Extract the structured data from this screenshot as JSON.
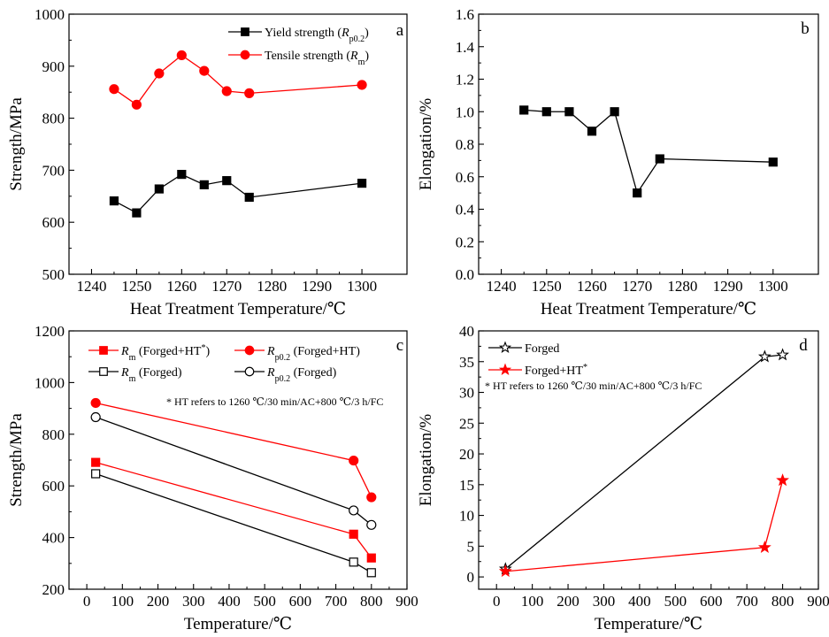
{
  "chart_data": [
    {
      "id": "a",
      "type": "line",
      "panel_label": "a",
      "xlabel": "Heat Treatment Temperature/℃",
      "ylabel": "Strength/MPa",
      "xlim": [
        1235,
        1310
      ],
      "ylim": [
        500,
        1000
      ],
      "xticks": [
        1240,
        1250,
        1260,
        1270,
        1280,
        1290,
        1300
      ],
      "yticks": [
        500,
        600,
        700,
        800,
        900,
        1000
      ],
      "legend_position": "top-right",
      "series": [
        {
          "name": "Yield strength (Rp0.2)",
          "name_main": "Yield strength (",
          "name_var": "R",
          "name_sub": "p0.2",
          "name_end": ")",
          "color": "#000000",
          "marker": "square",
          "filled": true,
          "x": [
            1245,
            1250,
            1255,
            1260,
            1265,
            1270,
            1275,
            1300
          ],
          "y": [
            641,
            618,
            664,
            692,
            672,
            680,
            648,
            675
          ]
        },
        {
          "name": "Tensile strength (Rm)",
          "name_main": "Tensile strength (",
          "name_var": "R",
          "name_sub": "m",
          "name_end": ")",
          "color": "#ff0000",
          "marker": "circle",
          "filled": true,
          "x": [
            1245,
            1250,
            1255,
            1260,
            1265,
            1270,
            1275,
            1300
          ],
          "y": [
            856,
            826,
            886,
            921,
            891,
            852,
            848,
            864
          ]
        }
      ]
    },
    {
      "id": "b",
      "type": "line",
      "panel_label": "b",
      "xlabel": "Heat Treatment Temperature/℃",
      "ylabel": "Elongation/%",
      "xlim": [
        1235,
        1310
      ],
      "ylim": [
        0.0,
        1.6
      ],
      "xticks": [
        1240,
        1250,
        1260,
        1270,
        1280,
        1290,
        1300
      ],
      "yticks": [
        0.0,
        0.2,
        0.4,
        0.6,
        0.8,
        1.0,
        1.2,
        1.4,
        1.6
      ],
      "ytick_decimals": 1,
      "series": [
        {
          "name": "",
          "color": "#000000",
          "marker": "square",
          "filled": true,
          "x": [
            1245,
            1250,
            1255,
            1260,
            1265,
            1270,
            1275,
            1300
          ],
          "y": [
            1.01,
            1.0,
            1.0,
            0.88,
            1.0,
            0.5,
            0.71,
            0.69
          ]
        }
      ]
    },
    {
      "id": "c",
      "type": "line",
      "panel_label": "c",
      "xlabel": "Temperature/℃",
      "ylabel": "Strength/MPa",
      "xlim": [
        -50,
        900
      ],
      "ylim": [
        200,
        1200
      ],
      "xticks": [
        0,
        100,
        200,
        300,
        400,
        500,
        600,
        700,
        800,
        900
      ],
      "yticks": [
        200,
        400,
        600,
        800,
        1000,
        1200
      ],
      "annotation": "*  HT refers to 1260 ℃/30 min/AC+800 ℃/3 h/FC",
      "legend_position": "top-left",
      "series": [
        {
          "name": "Rm (Forged+HT*)",
          "name_var": "R",
          "name_sub": "m",
          "name_main": " (Forged+HT",
          "name_sup": "*",
          "name_end": ")",
          "color": "#ff0000",
          "marker": "square",
          "filled": true,
          "x": [
            25,
            750,
            800
          ],
          "y": [
            691,
            413,
            321
          ]
        },
        {
          "name": "Rp0.2 (Forged+HT)",
          "name_var": "R",
          "name_sub": "p0.2",
          "name_main": " (Forged+HT)",
          "name_sup": "",
          "name_end": "",
          "color": "#ff0000",
          "marker": "circle",
          "filled": true,
          "x": [
            25,
            750,
            800
          ],
          "y": [
            921,
            698,
            556
          ]
        },
        {
          "name": "Rm (Forged)",
          "name_var": "R",
          "name_sub": "m",
          "name_main": " (Forged)",
          "name_sup": "",
          "name_end": "",
          "color": "#000000",
          "marker": "square",
          "filled": false,
          "x": [
            25,
            750,
            800
          ],
          "y": [
            647,
            305,
            264
          ]
        },
        {
          "name": "Rp0.2 (Forged)",
          "name_var": "R",
          "name_sub": "p0.2",
          "name_main": " (Forged)",
          "name_sup": "",
          "name_end": "",
          "color": "#000000",
          "marker": "circle",
          "filled": false,
          "x": [
            25,
            750,
            800
          ],
          "y": [
            866,
            505,
            449
          ]
        }
      ]
    },
    {
      "id": "d",
      "type": "line",
      "panel_label": "d",
      "xlabel": "Temperature/℃",
      "ylabel": "Elongation/%",
      "xlim": [
        -50,
        900
      ],
      "ylim": [
        -2,
        40
      ],
      "xticks": [
        0,
        100,
        200,
        300,
        400,
        500,
        600,
        700,
        800,
        900
      ],
      "yticks": [
        0,
        5,
        10,
        15,
        20,
        25,
        30,
        35,
        40
      ],
      "annotation": "*  HT refers to 1260 ℃/30 min/AC+800 ℃/3 h/FC",
      "legend_position": "top-left",
      "series": [
        {
          "name": "Forged",
          "name_main": "Forged",
          "name_sup": "",
          "color": "#000000",
          "marker": "star",
          "filled": false,
          "x": [
            25,
            750,
            800
          ],
          "y": [
            1.3,
            35.8,
            36.1
          ]
        },
        {
          "name": "Forged+HT*",
          "name_main": "Forged+HT",
          "name_sup": "*",
          "color": "#ff0000",
          "marker": "star",
          "filled": true,
          "x": [
            25,
            750,
            800
          ],
          "y": [
            0.9,
            4.8,
            15.7
          ]
        }
      ]
    }
  ]
}
